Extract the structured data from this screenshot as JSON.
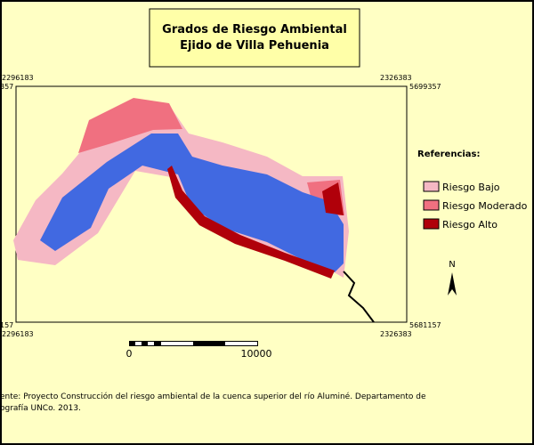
{
  "header": {
    "title": [
      "Grados de Riesgo Ambiental",
      "Ejido de Villa Pehuenia"
    ]
  },
  "frame": {
    "top_left_x": "2296183",
    "top_left_y": "357",
    "top_right_x": "2326383",
    "top_right_y": "5699357",
    "bottom_left_y": "157",
    "bottom_left_x": "2296183",
    "bottom_right_y": "5681157",
    "bottom_right_x": "2326383"
  },
  "legend": {
    "title": "Referencias:",
    "items": [
      "Riesgo Bajo",
      "Riesgo Moderado",
      "Riesgo Alto"
    ]
  },
  "north": "N",
  "scale": {
    "start": "0",
    "end": "10000"
  },
  "source": [
    "ente: Proyecto Construcción del riesgo ambiental de la cuenca superior del río Aluminé. Departamento de",
    "ografía UNCo. 2013."
  ]
}
